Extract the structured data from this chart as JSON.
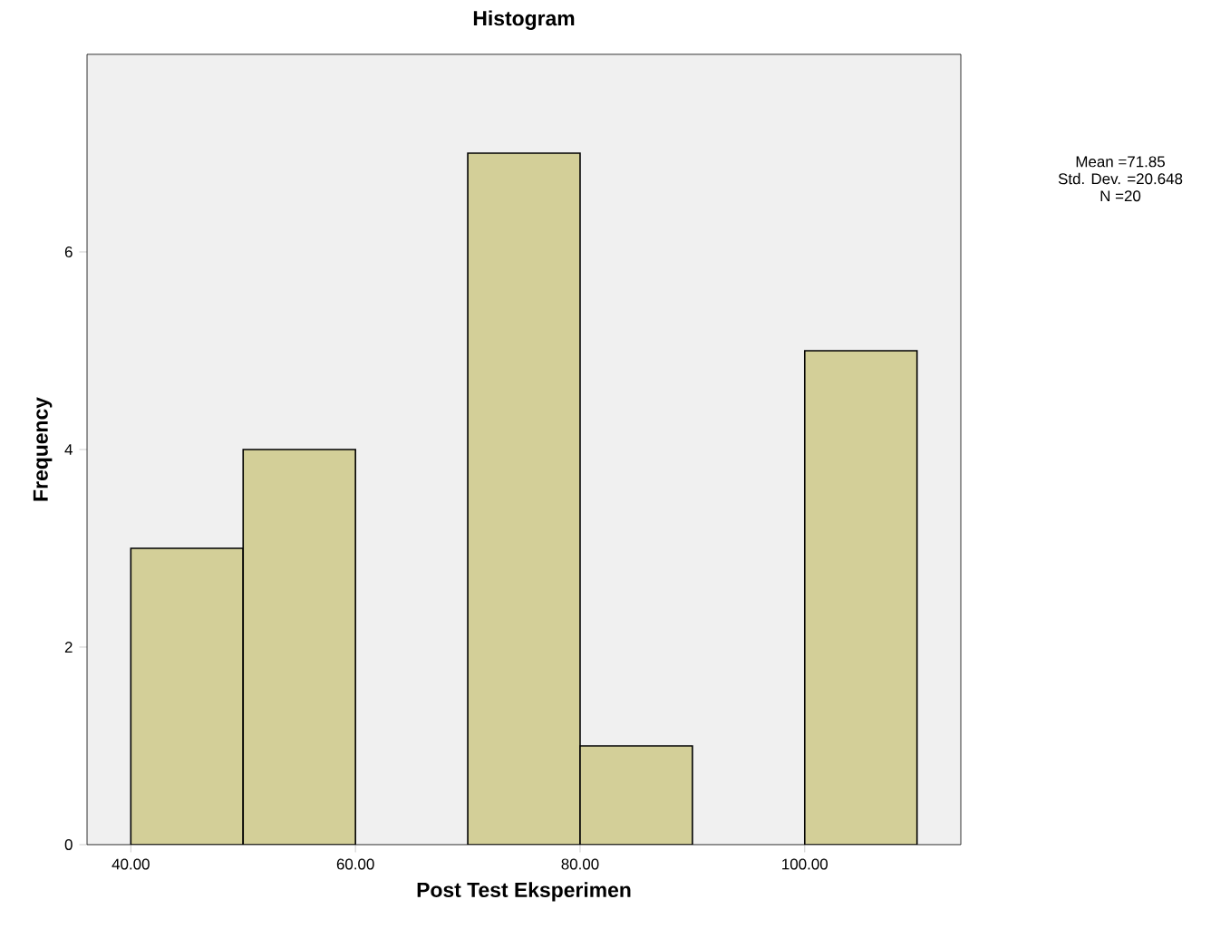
{
  "chart_data": {
    "type": "histogram",
    "title": "Histogram",
    "xlabel": "Post Test Eksperimen",
    "ylabel": "Frequency",
    "bins": [
      40,
      50,
      60,
      70,
      80,
      90,
      100,
      110
    ],
    "values": [
      3,
      4,
      0,
      7,
      1,
      0,
      5
    ],
    "color": "#d3cf98",
    "xlim": [
      36.1,
      113.9
    ],
    "ylim": [
      0,
      8
    ],
    "xticks": [
      {
        "value": 40,
        "label": "40.00"
      },
      {
        "value": 60,
        "label": "60.00"
      },
      {
        "value": 80,
        "label": "80.00"
      },
      {
        "value": 100,
        "label": "100.00"
      }
    ],
    "yticks": [
      0,
      2,
      4,
      6
    ],
    "grid": false,
    "annotations": [
      "Mean =71.85",
      "Std. Dev. =20.648",
      "N =20"
    ]
  }
}
